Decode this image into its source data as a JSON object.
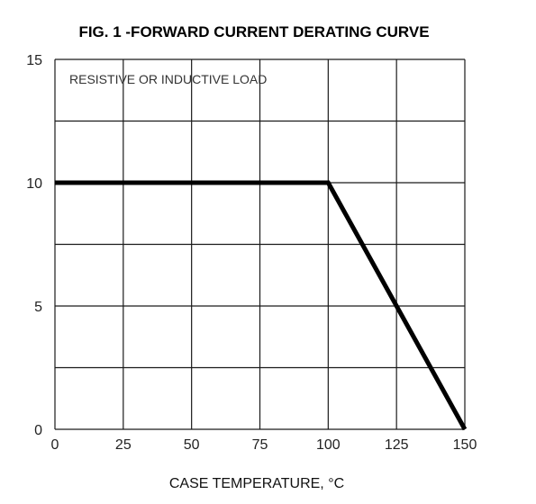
{
  "chart_data": {
    "type": "line",
    "title": "FIG. 1 -FORWARD CURRENT DERATING CURVE",
    "xlabel": "CASE TEMPERATURE, °C",
    "ylabel": "",
    "annotation": "RESISTIVE OR INDUCTIVE LOAD",
    "xlim": [
      0,
      150
    ],
    "ylim": [
      0,
      15
    ],
    "x_ticks": [
      0,
      25,
      50,
      75,
      100,
      125,
      150
    ],
    "y_ticks": [
      0,
      5,
      10,
      15
    ],
    "grid": true,
    "series": [
      {
        "x": [
          0,
          100,
          150
        ],
        "y": [
          10,
          10,
          0
        ]
      }
    ]
  },
  "colors": {
    "grid": "#1a1a1a",
    "curve": "#000000",
    "background": "#ffffff"
  }
}
